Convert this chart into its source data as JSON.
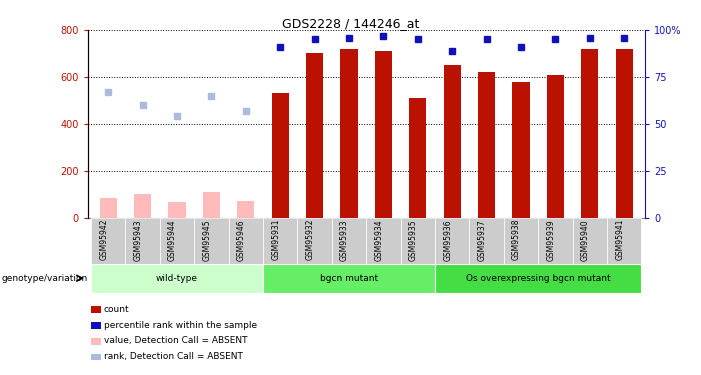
{
  "title": "GDS2228 / 144246_at",
  "samples": [
    "GSM95942",
    "GSM95943",
    "GSM95944",
    "GSM95945",
    "GSM95946",
    "GSM95931",
    "GSM95932",
    "GSM95933",
    "GSM95934",
    "GSM95935",
    "GSM95936",
    "GSM95937",
    "GSM95938",
    "GSM95939",
    "GSM95940",
    "GSM95941"
  ],
  "count_values": [
    null,
    null,
    null,
    null,
    null,
    530,
    700,
    720,
    710,
    510,
    650,
    620,
    580,
    610,
    720,
    720
  ],
  "count_absent": [
    85,
    100,
    65,
    110,
    70,
    null,
    null,
    null,
    null,
    null,
    null,
    null,
    null,
    null,
    null,
    null
  ],
  "rank_values": [
    null,
    null,
    null,
    null,
    null,
    91,
    95,
    96,
    97,
    95,
    89,
    95,
    91,
    95,
    96,
    96
  ],
  "rank_absent": [
    67,
    60,
    54,
    65,
    57,
    null,
    null,
    null,
    null,
    null,
    null,
    null,
    null,
    null,
    null,
    null
  ],
  "groups": [
    {
      "label": "wild-type",
      "start": 0,
      "end": 5,
      "color": "#ccffcc"
    },
    {
      "label": "bgcn mutant",
      "start": 5,
      "end": 10,
      "color": "#66ee66"
    },
    {
      "label": "Os overexpressing bgcn mutant",
      "start": 10,
      "end": 16,
      "color": "#44dd44"
    }
  ],
  "ylim_left": [
    0,
    800
  ],
  "ylim_right": [
    0,
    100
  ],
  "yticks_left": [
    0,
    200,
    400,
    600,
    800
  ],
  "yticks_right": [
    0,
    25,
    50,
    75,
    100
  ],
  "bar_width": 0.5,
  "bar_color_count": "#bb1100",
  "bar_color_count_absent": "#ffbbbb",
  "marker_color_rank": "#1111bb",
  "marker_color_rank_absent": "#aabbdd",
  "background_plot": "#ffffff"
}
